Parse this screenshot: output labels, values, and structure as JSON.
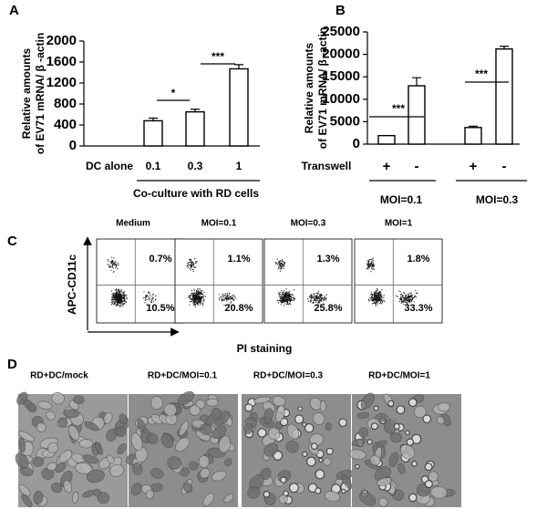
{
  "panel_labels": [
    "A",
    "B",
    "C",
    "D"
  ],
  "chart_data": [
    {
      "type": "bar",
      "ylabel": [
        "Relative amounts",
        "of EV71 mRNA/ β -actin"
      ],
      "categories": [
        "DC alone",
        "0.1",
        "0.3",
        "1"
      ],
      "values": [
        0,
        480,
        650,
        1470
      ],
      "errors": [
        0,
        50,
        50,
        80
      ],
      "xlabel": "Co-culture with RD cells",
      "ylim": [
        0,
        2000
      ],
      "yticks": [
        0,
        400,
        800,
        1200,
        1600,
        2000
      ],
      "annotations": [
        "*",
        "***"
      ],
      "color": "#ffffff"
    },
    {
      "type": "bar",
      "ylabel": [
        "Relative amounts",
        "of EV71 mRNA/ β -actin"
      ],
      "category_title": "Transwell",
      "categories": [
        "+",
        "-",
        "+",
        "-"
      ],
      "values": [
        1900,
        13000,
        3700,
        21200
      ],
      "errors": [
        0,
        1800,
        300,
        600
      ],
      "groups": [
        "MOI=0.1",
        "MOI=0.3"
      ],
      "ylim": [
        0,
        25000
      ],
      "yticks": [
        0,
        5000,
        10000,
        15000,
        20000,
        25000
      ],
      "annotations": [
        "***",
        "***"
      ],
      "color": "#ffffff"
    }
  ],
  "flow": {
    "y_label": "APC-CD11c",
    "x_label": "PI staining",
    "plots": [
      {
        "title": "Medium",
        "upper_right": "0.7%",
        "lower_right": "10.5%"
      },
      {
        "title": "MOI=0.1",
        "upper_right": "1.1%",
        "lower_right": "20.8%"
      },
      {
        "title": "MOI=0.3",
        "upper_right": "1.3%",
        "lower_right": "25.8%"
      },
      {
        "title": "MOI=1",
        "upper_right": "1.8%",
        "lower_right": "33.3%"
      }
    ]
  },
  "micrographs": {
    "labels": [
      "RD+DC/mock",
      "RD+DC/MOI=0.1",
      "RD+DC/MOI=0.3",
      "RD+DC/MOI=1"
    ]
  }
}
